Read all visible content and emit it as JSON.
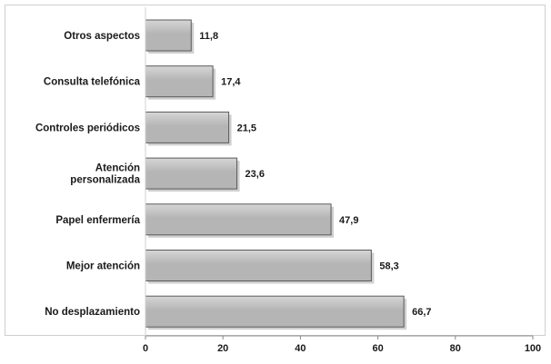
{
  "chart_data": {
    "type": "bar",
    "orientation": "horizontal",
    "categories": [
      [
        "Otros aspectos"
      ],
      [
        "Consulta telefónica"
      ],
      [
        "Controles periódicos"
      ],
      [
        "Atención",
        "personalizada"
      ],
      [
        "Papel enfermería"
      ],
      [
        "Mejor atención"
      ],
      [
        "No desplazamiento"
      ]
    ],
    "values": [
      11.8,
      17.4,
      21.5,
      23.6,
      47.9,
      58.3,
      66.7
    ],
    "value_labels": [
      "11,8",
      "17,4",
      "21,5",
      "23,6",
      "47,9",
      "58,3",
      "66,7"
    ],
    "xlim": [
      0,
      100
    ],
    "xticks": [
      0,
      20,
      40,
      60,
      80,
      100
    ],
    "title": "",
    "xlabel": "",
    "ylabel": "",
    "grid": false,
    "legend": "none",
    "colors": {
      "bar_fill": "#b5b5b5",
      "bar_highlight": "#d6d6d6",
      "bar_stroke": "#5a5a5a",
      "shadow": "#a8a8a8",
      "axis": "#888888",
      "text": "#1a1a1a"
    }
  }
}
